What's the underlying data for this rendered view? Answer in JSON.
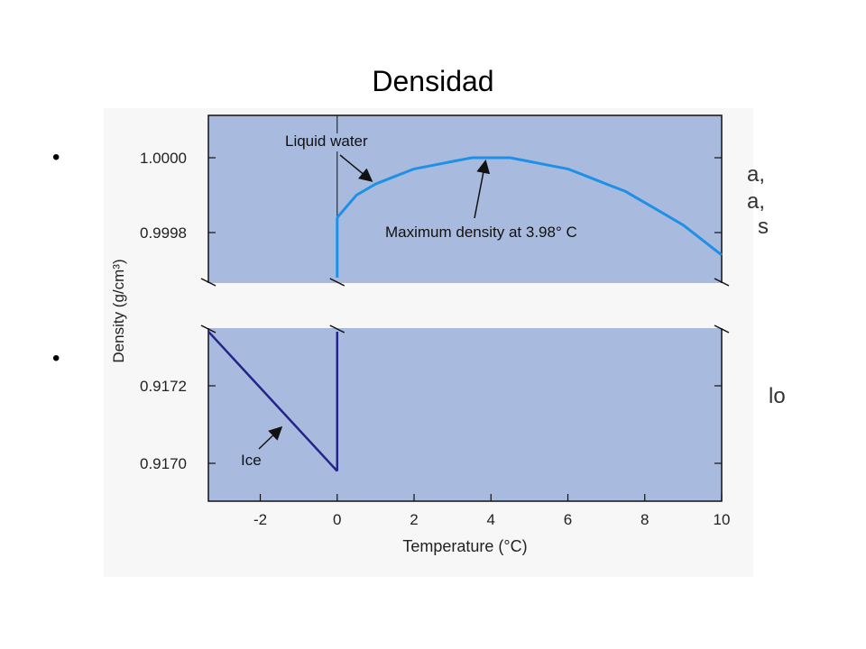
{
  "slide": {
    "title": "Densidad",
    "bullets": [
      "•",
      "•"
    ],
    "text_fragments": [
      "a,",
      "a,",
      "s",
      "lo"
    ]
  },
  "chart_data": {
    "type": "line",
    "xlabel": "Temperature (°C)",
    "ylabel": "Density (g/cm³)",
    "xlim": [
      -3.35,
      10
    ],
    "x_ticks": [
      -2,
      0,
      2,
      4,
      6,
      8,
      10
    ],
    "x_tick_labels": [
      "-2",
      "0",
      "2",
      "4",
      "6",
      "8",
      "10"
    ],
    "y_axis_broken": true,
    "y_upper_ticks": [
      1.0,
      0.9998
    ],
    "y_upper_tick_labels": [
      "1.0000",
      "0.9998"
    ],
    "y_lower_ticks": [
      0.9172,
      0.917
    ],
    "y_lower_tick_labels": [
      "0.9172",
      "0.9170"
    ],
    "grid": false,
    "series": [
      {
        "name": "Liquid water",
        "color": "#1e90e6",
        "x": [
          0,
          0.5,
          1,
          1.5,
          2,
          2.5,
          3,
          3.5,
          4,
          4.5,
          5,
          5.5,
          6,
          6.5,
          7,
          7.5,
          8,
          8.5,
          9,
          9.5,
          10
        ],
        "y": [
          0.99984,
          0.9999,
          0.99993,
          0.99995,
          0.99997,
          0.99998,
          0.99999,
          1.0,
          1.0,
          1.0,
          0.99999,
          0.99998,
          0.99997,
          0.99995,
          0.99993,
          0.99991,
          0.99988,
          0.99985,
          0.99982,
          0.99978,
          0.99974
        ]
      },
      {
        "name": "Ice",
        "color": "#24248a",
        "x": [
          -3.35,
          0
        ],
        "y": [
          0.91734,
          0.91698
        ]
      }
    ],
    "annotations": [
      {
        "text": "Liquid water",
        "x": 1.6,
        "y": 1.00002
      },
      {
        "text": "Maximum density at 3.98° C",
        "x": 3.98,
        "y": 1.0
      },
      {
        "text": "Ice",
        "x": -1.5,
        "y": 0.91715
      }
    ]
  }
}
